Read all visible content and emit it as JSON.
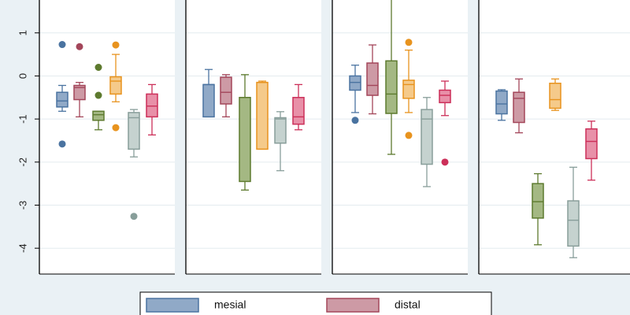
{
  "chart_data": {
    "type": "box",
    "title": "",
    "xlabel": "",
    "ylabel": "",
    "ylim": [
      -4.6,
      1.8
    ],
    "yticks": [
      1,
      0,
      -1,
      -2,
      -3,
      -4
    ],
    "grid": true,
    "legend_position": "bottom",
    "series": [
      {
        "name": "mesial",
        "color": "#4a73a0",
        "fill": "#90a9c7"
      },
      {
        "name": "distal",
        "color": "#a3465a",
        "fill": "#cd9aa5"
      },
      {
        "name": "",
        "color": "#5d7a2e",
        "fill": "#a4b883"
      },
      {
        "name": "",
        "color": "#e8931e",
        "fill": "#f5ca8a"
      },
      {
        "name": "",
        "color": "#889e9a",
        "fill": "#c5d2cf"
      },
      {
        "name": "",
        "color": "#cc2f59",
        "fill": "#e890a8"
      }
    ],
    "panels": [
      {
        "boxes": [
          {
            "series": 0,
            "whislo": -0.82,
            "q1": -0.72,
            "med": -0.58,
            "q3": -0.38,
            "whishi": -0.22,
            "outliers": [
              0.73,
              -1.58
            ]
          },
          {
            "series": 1,
            "whislo": -0.95,
            "q1": -0.55,
            "med": -0.27,
            "q3": -0.22,
            "whishi": -0.15,
            "outliers": [
              0.68
            ]
          },
          {
            "series": 2,
            "whislo": -1.25,
            "q1": -1.03,
            "med": -0.9,
            "q3": -0.82,
            "whishi": -0.82,
            "outliers": [
              0.2,
              -0.45
            ]
          },
          {
            "series": 3,
            "whislo": -0.6,
            "q1": -0.42,
            "med": -0.12,
            "q3": -0.02,
            "whishi": 0.5,
            "outliers": [
              0.72,
              -1.2
            ]
          },
          {
            "series": 4,
            "whislo": -1.88,
            "q1": -1.7,
            "med": -0.97,
            "q3": -0.85,
            "whishi": -0.78,
            "outliers": [
              -3.26
            ]
          },
          {
            "series": 5,
            "whislo": -1.37,
            "q1": -0.95,
            "med": -0.7,
            "q3": -0.42,
            "whishi": -0.2,
            "outliers": []
          }
        ]
      },
      {
        "boxes": [
          {
            "series": 0,
            "whislo": -0.95,
            "q1": -0.95,
            "med": -0.2,
            "q3": -0.2,
            "whishi": 0.15,
            "outliers": []
          },
          {
            "series": 1,
            "whislo": -0.95,
            "q1": -0.65,
            "med": -0.38,
            "q3": -0.03,
            "whishi": 0.03,
            "outliers": []
          },
          {
            "series": 2,
            "whislo": -2.65,
            "q1": -2.45,
            "med": -0.5,
            "q3": -0.5,
            "whishi": 0.03,
            "outliers": []
          },
          {
            "series": 3,
            "whislo": -1.7,
            "q1": -1.7,
            "med": -0.15,
            "q3": -0.15,
            "whishi": -0.12,
            "outliers": []
          },
          {
            "series": 4,
            "whislo": -2.2,
            "q1": -1.56,
            "med": -1.0,
            "q3": -0.97,
            "whishi": -0.83,
            "outliers": []
          },
          {
            "series": 5,
            "whislo": -1.25,
            "q1": -1.12,
            "med": -0.95,
            "q3": -0.5,
            "whishi": -0.2,
            "outliers": []
          }
        ]
      },
      {
        "boxes": [
          {
            "series": 0,
            "whislo": -0.85,
            "q1": -0.33,
            "med": -0.15,
            "q3": 0.0,
            "whishi": 0.25,
            "outliers": [
              -1.03
            ]
          },
          {
            "series": 1,
            "whislo": -0.88,
            "q1": -0.45,
            "med": -0.22,
            "q3": 0.3,
            "whishi": 0.72,
            "outliers": []
          },
          {
            "series": 2,
            "whislo": -1.82,
            "q1": -0.87,
            "med": -0.42,
            "q3": 0.35,
            "whishi": 1.9,
            "outliers": []
          },
          {
            "series": 3,
            "whislo": -0.85,
            "q1": -0.52,
            "med": -0.2,
            "q3": -0.1,
            "whishi": 0.6,
            "outliers": [
              0.78,
              -1.38
            ]
          },
          {
            "series": 4,
            "whislo": -2.57,
            "q1": -2.05,
            "med": -1.0,
            "q3": -0.78,
            "whishi": -0.5,
            "outliers": []
          },
          {
            "series": 5,
            "whislo": -0.92,
            "q1": -0.62,
            "med": -0.45,
            "q3": -0.33,
            "whishi": -0.12,
            "outliers": [
              -2.0
            ]
          }
        ]
      },
      {
        "boxes": [
          {
            "series": 0,
            "whislo": -1.03,
            "q1": -0.88,
            "med": -0.65,
            "q3": -0.35,
            "whishi": -0.32,
            "outliers": []
          },
          {
            "series": 1,
            "whislo": -1.32,
            "q1": -1.08,
            "med": -0.52,
            "q3": -0.38,
            "whishi": -0.07,
            "outliers": []
          },
          {
            "series": 2,
            "whislo": -3.92,
            "q1": -3.3,
            "med": -2.92,
            "q3": -2.5,
            "whishi": -2.27,
            "outliers": []
          },
          {
            "series": 3,
            "whislo": -0.8,
            "q1": -0.75,
            "med": -0.55,
            "q3": -0.17,
            "whishi": -0.07,
            "outliers": []
          },
          {
            "series": 4,
            "whislo": -4.22,
            "q1": -3.95,
            "med": -3.35,
            "q3": -2.9,
            "whishi": -2.12,
            "outliers": []
          },
          {
            "series": 5,
            "whislo": -2.42,
            "q1": -1.92,
            "med": -1.52,
            "q3": -1.23,
            "whishi": -1.05,
            "outliers": []
          }
        ]
      }
    ]
  }
}
